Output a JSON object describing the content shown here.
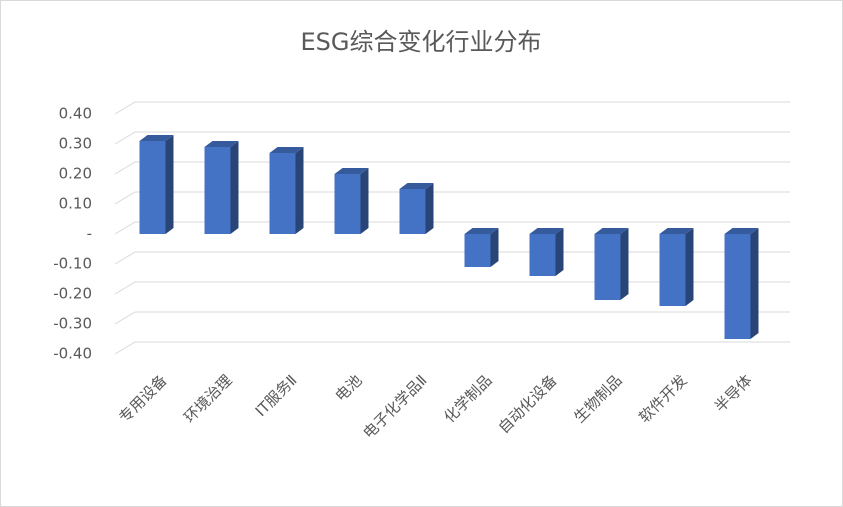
{
  "chart_data": {
    "type": "bar3d",
    "title": "ESG综合变化行业分布",
    "categories": [
      "专用设备",
      "环境治理",
      "IT服务Ⅱ",
      "电池",
      "电子化学品Ⅱ",
      "化学制品",
      "自动化设备",
      "生物制品",
      "软件开发",
      "半导体"
    ],
    "values": [
      0.31,
      0.29,
      0.27,
      0.2,
      0.15,
      -0.11,
      -0.14,
      -0.22,
      -0.24,
      -0.35
    ],
    "color": "#4472c4",
    "ylim": [
      -0.4,
      0.4
    ],
    "yticks": [
      {
        "value": 0.4,
        "label": "0.40"
      },
      {
        "value": 0.3,
        "label": "0.30"
      },
      {
        "value": 0.2,
        "label": "0.20"
      },
      {
        "value": 0.1,
        "label": "0.10"
      },
      {
        "value": 0,
        "label": "-"
      },
      {
        "value": -0.1,
        "label": "-0.10"
      },
      {
        "value": -0.2,
        "label": "-0.20"
      },
      {
        "value": -0.3,
        "label": "-0.30"
      },
      {
        "value": -0.4,
        "label": "-0.40"
      }
    ],
    "grid": true
  }
}
